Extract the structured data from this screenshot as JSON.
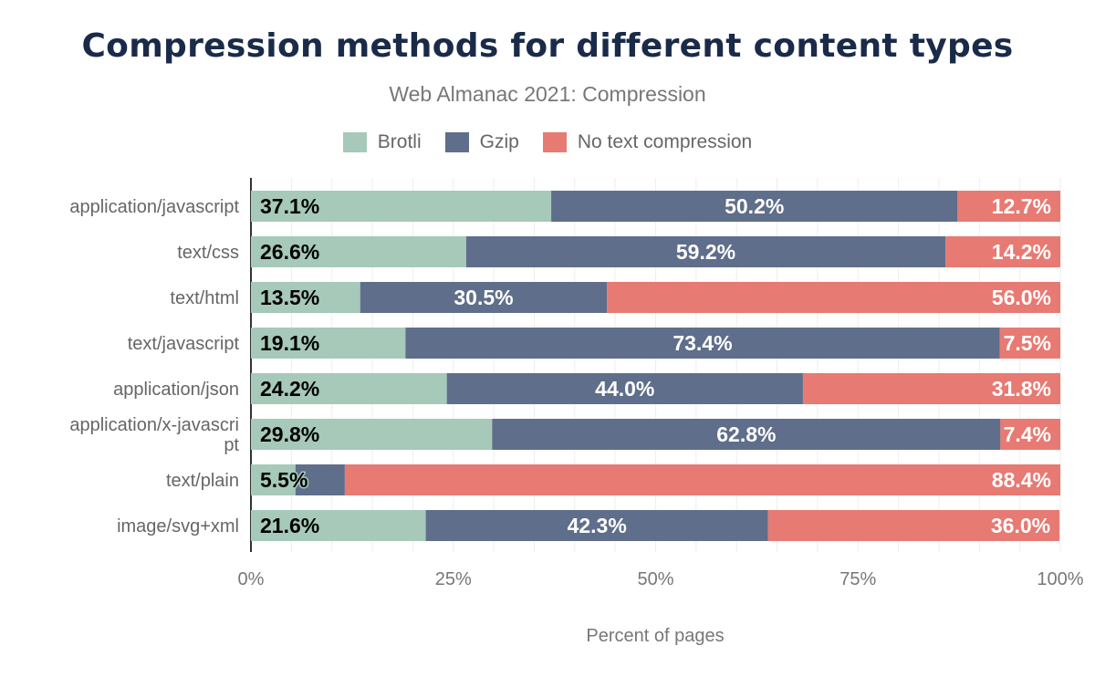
{
  "chart_data": {
    "type": "bar",
    "orientation": "horizontal",
    "stacked": true,
    "title": "Compression methods for different content types",
    "subtitle": "Web Almanac 2021: Compression",
    "xlabel": "Percent of pages",
    "ylabel": "",
    "xlim": [
      0,
      100
    ],
    "x_ticks": [
      "0%",
      "25%",
      "50%",
      "75%",
      "100%"
    ],
    "grid": true,
    "legend_position": "top",
    "categories": [
      "application/javascript",
      "text/css",
      "text/html",
      "text/javascript",
      "application/json",
      "application/x-javascript",
      "text/plain",
      "image/svg+xml"
    ],
    "series": [
      {
        "name": "Brotli",
        "color": "#a6c9b9",
        "values": [
          37.1,
          26.6,
          13.5,
          19.1,
          24.2,
          29.8,
          5.5,
          21.6
        ],
        "labels": [
          "37.1%",
          "26.6%",
          "13.5%",
          "19.1%",
          "24.2%",
          "29.8%",
          "5.5%",
          "21.6%"
        ]
      },
      {
        "name": "Gzip",
        "color": "#5f6e8a",
        "values": [
          50.2,
          59.2,
          30.5,
          73.4,
          44.0,
          62.8,
          6.1,
          42.3
        ],
        "labels": [
          "50.2%",
          "59.2%",
          "30.5%",
          "73.4%",
          "44.0%",
          "62.8%",
          "",
          "42.3%"
        ]
      },
      {
        "name": "No text compression",
        "color": "#e77a72",
        "values": [
          12.7,
          14.2,
          56.0,
          7.5,
          31.8,
          7.4,
          88.4,
          36.0
        ],
        "labels": [
          "12.7%",
          "14.2%",
          "56.0%",
          "7.5%",
          "31.8%",
          "7.4%",
          "88.4%",
          "36.0%"
        ]
      }
    ]
  }
}
